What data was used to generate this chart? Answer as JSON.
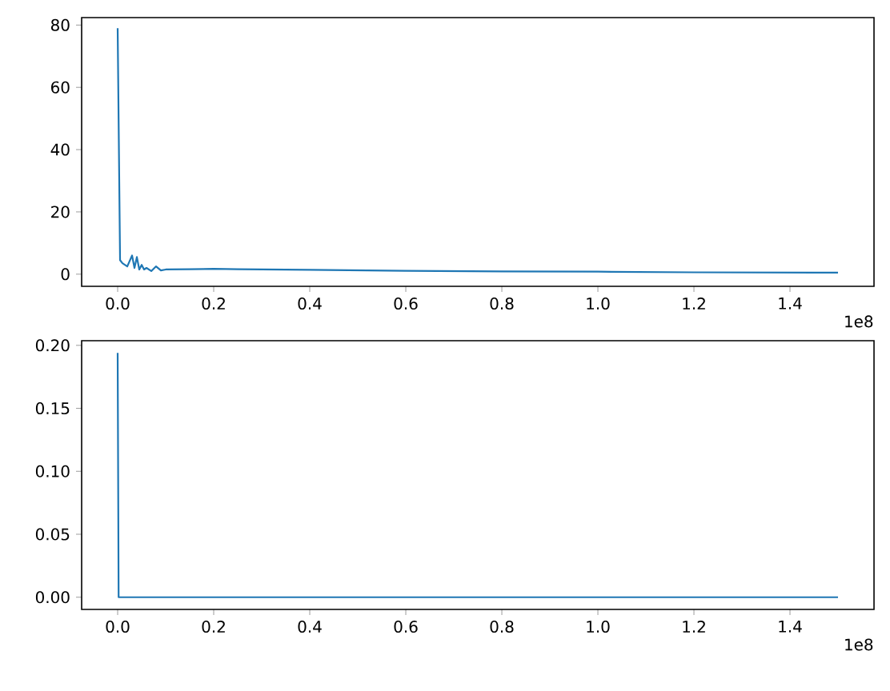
{
  "chart_data": [
    {
      "type": "line",
      "color": "#1f77b4",
      "x": [
        0,
        0.005,
        0.01,
        0.02,
        0.03,
        0.035,
        0.04,
        0.045,
        0.05,
        0.055,
        0.06,
        0.07,
        0.08,
        0.09,
        0.1,
        0.15,
        0.2,
        0.25,
        0.4,
        0.6,
        0.8,
        1.0,
        1.2,
        1.5
      ],
      "values": [
        79,
        4.5,
        3.5,
        2.5,
        6,
        2,
        5.5,
        1.5,
        3,
        1.5,
        2,
        1,
        2.5,
        1.2,
        1.5,
        1.6,
        1.7,
        1.6,
        1.4,
        1.1,
        0.9,
        0.8,
        0.6,
        0.5
      ],
      "xlim": [
        -0.075,
        1.575
      ],
      "ylim": [
        -3.9,
        82.4
      ],
      "xticks": [
        {
          "value": 0,
          "label": "0.0"
        },
        {
          "value": 0.2,
          "label": "0.2"
        },
        {
          "value": 0.4,
          "label": "0.4"
        },
        {
          "value": 0.6,
          "label": "0.6"
        },
        {
          "value": 0.8,
          "label": "0.8"
        },
        {
          "value": 1.0,
          "label": "1.0"
        },
        {
          "value": 1.2,
          "label": "1.2"
        },
        {
          "value": 1.4,
          "label": "1.4"
        }
      ],
      "yticks": [
        0,
        20,
        40,
        60,
        80
      ],
      "annotations": [
        "1e8"
      ]
    },
    {
      "type": "line",
      "color": "#1f77b4",
      "x": [
        0,
        0.002,
        0.2,
        1.5
      ],
      "values": [
        0.194,
        0,
        0,
        0
      ],
      "xlim": [
        -0.075,
        1.575
      ],
      "ylim": [
        -0.0097,
        0.2037
      ],
      "xticks": [
        {
          "value": 0,
          "label": "0.0"
        },
        {
          "value": 0.2,
          "label": "0.2"
        },
        {
          "value": 0.4,
          "label": "0.4"
        },
        {
          "value": 0.6,
          "label": "0.6"
        },
        {
          "value": 0.8,
          "label": "0.8"
        },
        {
          "value": 1.0,
          "label": "1.0"
        },
        {
          "value": 1.2,
          "label": "1.2"
        },
        {
          "value": 1.4,
          "label": "1.4"
        }
      ],
      "yticks": [
        {
          "value": 0,
          "label": "0.00"
        },
        {
          "value": 0.05,
          "label": "0.05"
        },
        {
          "value": 0.1,
          "label": "0.10"
        },
        {
          "value": 0.15,
          "label": "0.15"
        },
        {
          "value": 0.2,
          "label": "0.20"
        }
      ],
      "annotations": [
        "1e8"
      ]
    }
  ]
}
